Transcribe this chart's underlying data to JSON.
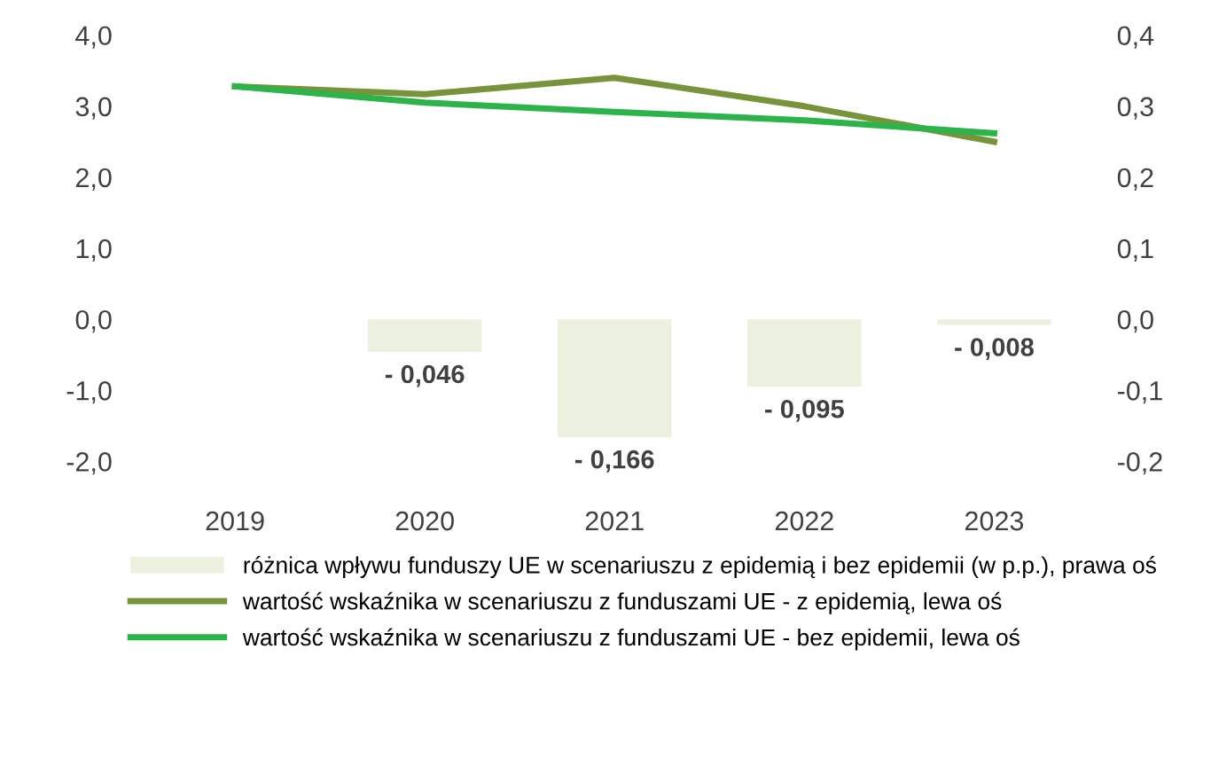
{
  "chart_data": {
    "type": "line",
    "categories": [
      "2019",
      "2020",
      "2021",
      "2022",
      "2023"
    ],
    "series": [
      {
        "name": "różnica wpływu funduszy UE w scenariuszu z epidemią i bez epidemii (w p.p.), prawa oś",
        "type": "bar",
        "axis": "y2",
        "color": "#ebf1de",
        "values": [
          null,
          -0.046,
          -0.166,
          -0.095,
          -0.008
        ],
        "value_labels": [
          null,
          "- 0,046",
          "- 0,166",
          "- 0,095",
          "- 0,008"
        ]
      },
      {
        "name": "wartość wskaźnika w scenariuszu z funduszami UE - z epidemią, lewa oś",
        "color": "#77933c",
        "values": [
          3.28,
          3.17,
          3.4,
          3.0,
          2.5
        ]
      },
      {
        "name": "wartość wskaźnika w scenariuszu z funduszami UE - bez epidemii, lewa oś",
        "color": "#2cb34a",
        "values": [
          3.28,
          3.05,
          2.92,
          2.8,
          2.62
        ]
      }
    ],
    "ylim": [
      -2,
      4
    ],
    "yticks": [
      {
        "value": -2,
        "label": "-2,0"
      },
      {
        "value": -1,
        "label": "-1,0"
      },
      {
        "value": 0,
        "label": "0,0"
      },
      {
        "value": 1,
        "label": "1,0"
      },
      {
        "value": 2,
        "label": "2,0"
      },
      {
        "value": 3,
        "label": "3,0"
      },
      {
        "value": 4,
        "label": "4,0"
      }
    ],
    "y2lim": [
      -0.2,
      0.4
    ],
    "y2ticks": [
      {
        "value": -0.2,
        "label": "-0,2"
      },
      {
        "value": -0.1,
        "label": "-0,1"
      },
      {
        "value": 0,
        "label": "0,0"
      },
      {
        "value": 0.1,
        "label": "0,1"
      },
      {
        "value": 0.2,
        "label": "0,2"
      },
      {
        "value": 0.3,
        "label": "0,3"
      },
      {
        "value": 0.4,
        "label": "0,4"
      }
    ],
    "grid": false,
    "legend": "bottom",
    "marker": "none",
    "line_style": "solid"
  }
}
